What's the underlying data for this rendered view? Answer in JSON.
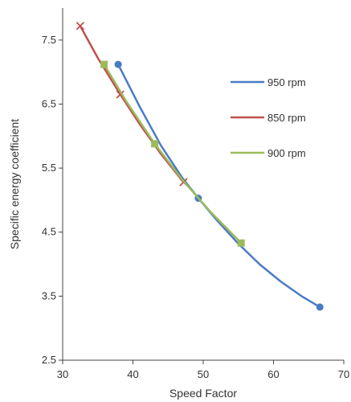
{
  "chart_data": {
    "type": "line",
    "xlabel": "Speed Factor",
    "ylabel": "Specific energy coefficient",
    "xlim": [
      30,
      70
    ],
    "ylim": [
      2.5,
      8.0
    ],
    "xticks": [
      30,
      40,
      50,
      60,
      70
    ],
    "yticks": [
      2.5,
      3.5,
      4.5,
      5.5,
      6.5,
      7.5
    ],
    "xtick_labels": [
      "30",
      "40",
      "50",
      "60",
      "70"
    ],
    "ytick_labels": [
      "2.5",
      "3.5",
      "4.5",
      "5.5",
      "6.5",
      "7.5"
    ],
    "grid": false,
    "legend_position": "right",
    "series": [
      {
        "name": "950 rpm",
        "color": "#4a7cc4",
        "marker": "circle",
        "markers": [
          {
            "x": 37.9,
            "y": 7.12
          },
          {
            "x": 49.3,
            "y": 5.03
          },
          {
            "x": 66.6,
            "y": 3.33
          }
        ],
        "curve": [
          {
            "x": 37.9,
            "y": 7.12
          },
          {
            "x": 41.0,
            "y": 6.45
          },
          {
            "x": 44.0,
            "y": 5.85
          },
          {
            "x": 47.0,
            "y": 5.35
          },
          {
            "x": 49.3,
            "y": 5.03
          },
          {
            "x": 52.0,
            "y": 4.68
          },
          {
            "x": 55.0,
            "y": 4.32
          },
          {
            "x": 58.0,
            "y": 4.0
          },
          {
            "x": 61.0,
            "y": 3.73
          },
          {
            "x": 64.0,
            "y": 3.5
          },
          {
            "x": 66.6,
            "y": 3.33
          }
        ]
      },
      {
        "name": "850 rpm",
        "color": "#c0504d",
        "marker": "x",
        "markers": [
          {
            "x": 32.5,
            "y": 7.72
          },
          {
            "x": 38.2,
            "y": 6.65
          },
          {
            "x": 47.2,
            "y": 5.28
          }
        ],
        "curve": [
          {
            "x": 32.5,
            "y": 7.72
          },
          {
            "x": 35.0,
            "y": 7.22
          },
          {
            "x": 38.2,
            "y": 6.65
          },
          {
            "x": 41.0,
            "y": 6.18
          },
          {
            "x": 44.0,
            "y": 5.72
          },
          {
            "x": 47.2,
            "y": 5.28
          }
        ]
      },
      {
        "name": "900 rpm",
        "color": "#9bbb59",
        "marker": "square",
        "markers": [
          {
            "x": 35.9,
            "y": 7.12
          },
          {
            "x": 43.1,
            "y": 5.88
          },
          {
            "x": 55.4,
            "y": 4.33
          }
        ],
        "curve": [
          {
            "x": 35.9,
            "y": 7.12
          },
          {
            "x": 39.0,
            "y": 6.55
          },
          {
            "x": 43.1,
            "y": 5.88
          },
          {
            "x": 47.0,
            "y": 5.32
          },
          {
            "x": 51.0,
            "y": 4.82
          },
          {
            "x": 55.4,
            "y": 4.33
          }
        ]
      }
    ]
  }
}
